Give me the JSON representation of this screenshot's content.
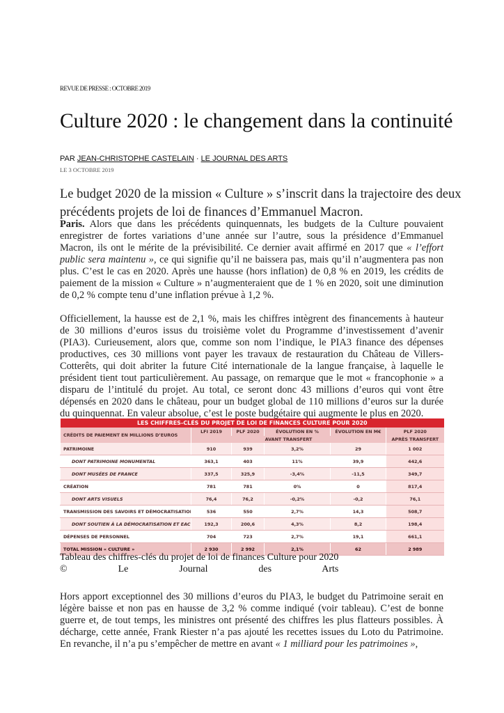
{
  "header": {
    "kicker": "REVUE DE PRESSE : OCTOBRE 2019"
  },
  "article": {
    "title": "Culture 2020 : le changement dans la continuité",
    "byline": {
      "prefix": "PAR",
      "author": "JEAN-CHRISTOPHE CASTELAIN",
      "separator": "·",
      "source": "LE JOURNAL DES ARTS"
    },
    "date": "LE 3 OCTOBRE 2019",
    "lede": [
      "Le budget 2020 de la mission « Culture » s’inscrit dans la trajectoire des deux",
      "précédents projets de loi de finances d’Emmanuel Macron."
    ],
    "paragraphs": [
      [
        [
          {
            "bold": "Paris."
          },
          " Alors que dans les précédents quinquennats, les budgets de la Culture pouvaient"
        ],
        [
          "enregistrer de fortes variations d’une année sur l’autre, sous la présidence d’Emmanuel"
        ],
        [
          "Macron, ils ont le mérite de la prévisibilité. Ce dernier avait affirmé en 2017 que ",
          {
            "italic": "« l’effort"
          }
        ],
        [
          {
            "italic": "public sera maintenu »"
          },
          ", ce qui signifie qu’il ne baissera pas, mais qu’il n’augmentera pas non"
        ],
        [
          "plus. C’est le cas en 2020. Après une hausse (hors inflation) de 0,8 % en 2019, les crédits de"
        ],
        [
          "paiement de la mission « Culture » n’augmenteraient que de 1 % en 2020, soit une diminution"
        ],
        [
          "de 0,2 % compte tenu d’une inflation prévue à 1,2 %."
        ]
      ],
      [
        [
          "Officiellement, la hausse est de 2,1 %, mais les chiffres intègrent des financements à hauteur"
        ],
        [
          "de 30 millions d’euros issus du troisième volet du Programme d’investissement d’avenir"
        ],
        [
          "(PIA3). Curieusement, alors que, comme son nom l’indique, le PIA3 finance des dépenses"
        ],
        [
          "productives, ces 30 millions vont payer les travaux de restauration du Château de Villers-"
        ],
        [
          "Cotterêts, qui doit abriter la future Cité internationale de la langue française, à laquelle le"
        ],
        [
          "président tient tout particulièrement. Au passage, on remarque que le mot « francophonie » a"
        ],
        [
          "disparu de l’intitulé du projet. Au total, ce seront donc 43 millions d’euros qui vont être"
        ],
        [
          "dépensés en 2020 dans le château, pour un budget global de 110 millions d’euros sur la durée"
        ],
        [
          "du quinquennat. En valeur absolue, c’est le poste budgétaire qui augmente le plus en 2020."
        ]
      ],
      [
        [
          "Hors apport exceptionnel des 30 millions d’euros du PIA3, le budget du Patrimoine serait en"
        ],
        [
          "légère baisse et non pas en hausse de 3,2 % comme indiqué (voir tableau). C’est de bonne"
        ],
        [
          "guerre et, de tout temps, les ministres ont présenté des chiffres les plus flatteurs possibles. À"
        ],
        [
          "décharge, cette année, Frank Riester n’a pas ajouté les recettes issues du Loto du Patrimoine."
        ],
        [
          "En revanche, il n’a pu s’empêcher de mettre en avant ",
          {
            "italic": "« 1 milliard pour les patrimoines »"
          },
          ","
        ]
      ]
    ],
    "table": {
      "title": "LES CHIFFRES-CLÉS DU PROJET DE LOI DE FINANCES CULTURE POUR 2020",
      "headers": [
        "CRÉDITS DE PAIEMENT EN MILLIONS D’EUROS",
        "LFI 2019",
        "PLF 2020",
        "ÉVOLUTION EN %",
        "ÉVOLUTION EN M€",
        "PLF 2020"
      ],
      "subheaders": [
        "AVANT TRANSFERT",
        "APRÈS TRANSFERT"
      ],
      "sections": [
        {
          "row": [
            "PATRIMOINE",
            "910",
            "939",
            "3,2%",
            "29",
            "1 002"
          ],
          "details": [
            [
              "DONT PATRIMOINE MONUMENTAL",
              "363,1",
              "403",
              "11%",
              "39,9",
              "442,6"
            ],
            [
              "DONT MUSÉES DE FRANCE",
              "337,5",
              "325,9",
              "-3,4%",
              "-11,5",
              "349,7"
            ]
          ]
        },
        {
          "row": [
            "CRÉATION",
            "781",
            "781",
            "0%",
            "0",
            "817,4"
          ],
          "details": [
            [
              "DONT ARTS VISUELS",
              "76,4",
              "76,2",
              "-0,2%",
              "-0,2",
              "76,1"
            ]
          ]
        },
        {
          "row": [
            "TRANSMISSION DES SAVOIRS ET DÉMOCRATISATION",
            "536",
            "550",
            "2,7%",
            "14,3",
            "508,7"
          ],
          "details": [
            [
              "DONT SOUTIEN À LA DÉMOCRATISATION ET EAC",
              "192,3",
              "200,6",
              "4,3%",
              "8,2",
              "198,4"
            ]
          ]
        },
        {
          "row": [
            "DÉPENSES DE PERSONNEL",
            "704",
            "723",
            "2,7%",
            "19,1",
            "661,1"
          ],
          "details": []
        }
      ],
      "total": [
        "TOTAL MISSION « CULTURE »",
        "2 930",
        "2 992",
        "2,1%",
        "62",
        "2 989"
      ],
      "caption": [
        "Tableau des chiffres-clés du projet de loi de finances Culture pour 2020",
        "© Le Journal des Arts"
      ]
    }
  }
}
